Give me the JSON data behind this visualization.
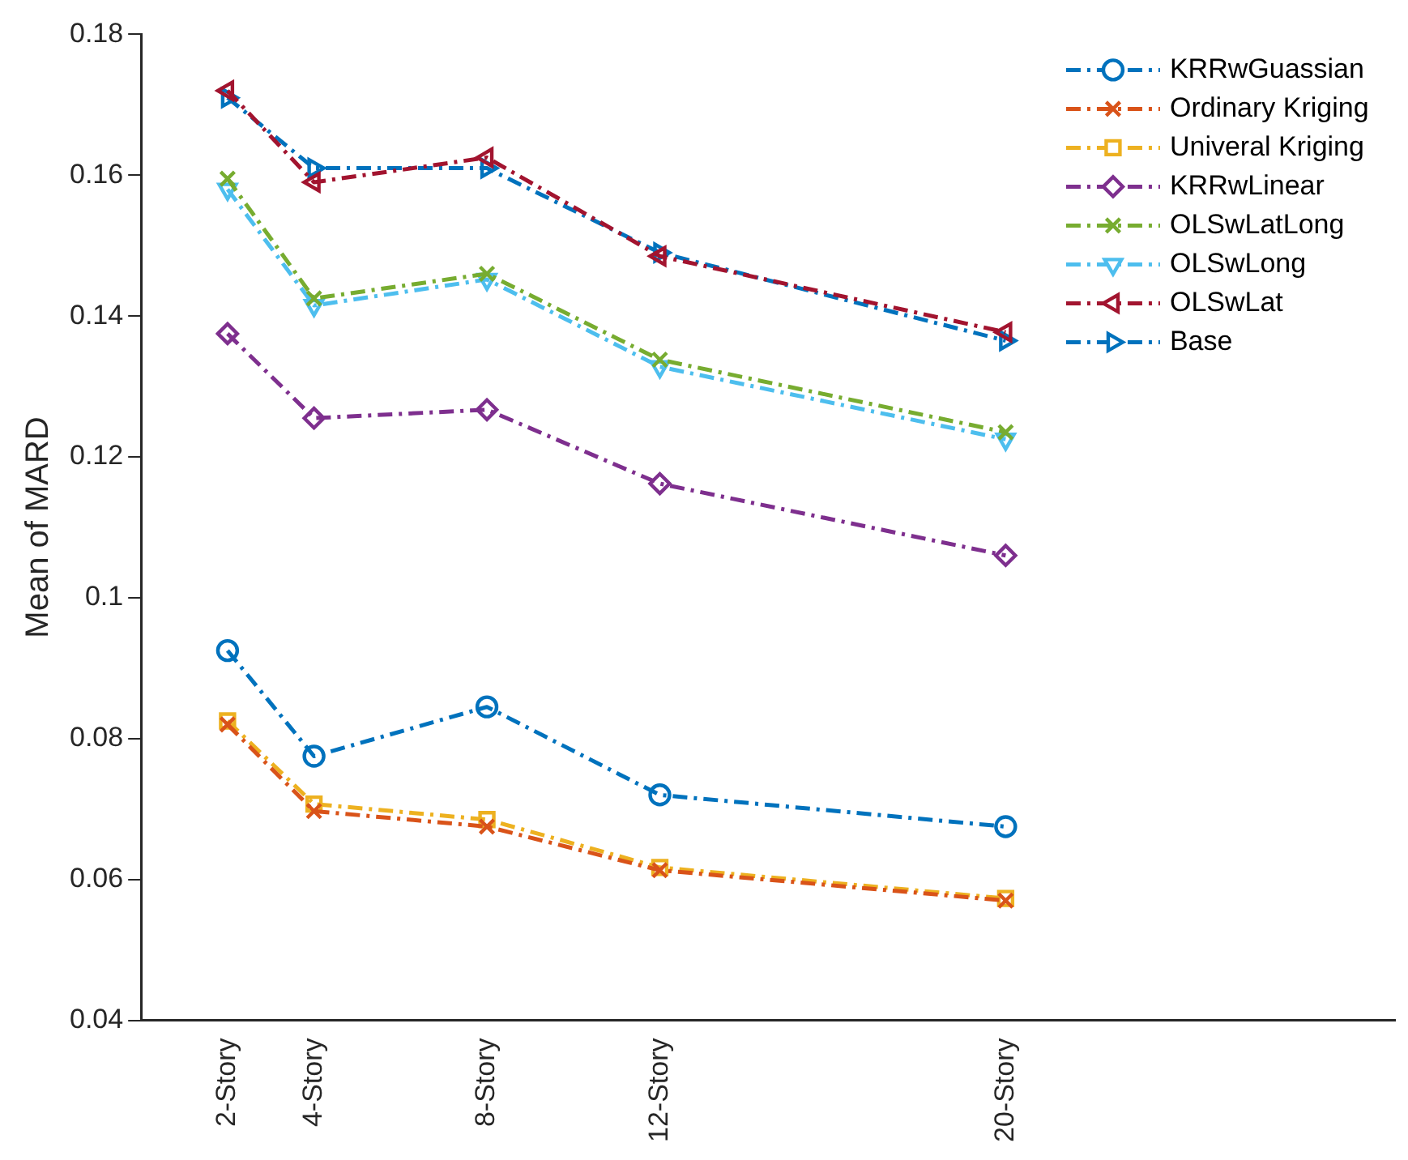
{
  "chart_data": {
    "type": "line",
    "ylabel": "Mean of MARD",
    "x": [
      2,
      4,
      8,
      12,
      20
    ],
    "xlim": [
      0,
      29
    ],
    "xticks": [
      {
        "value": 2,
        "label": "2-Story"
      },
      {
        "value": 4,
        "label": "4-Story"
      },
      {
        "value": 8,
        "label": "8-Story"
      },
      {
        "value": 12,
        "label": "12-Story"
      },
      {
        "value": 20,
        "label": "20-Story"
      }
    ],
    "ylim": [
      0.04,
      0.18
    ],
    "yticks": [
      0.04,
      0.06,
      0.08,
      0.1,
      0.12,
      0.14,
      0.16,
      0.18
    ],
    "grid": false,
    "legend": "top right",
    "line_style": "dashed",
    "series": [
      {
        "name": "KRRwGuassian",
        "color": "#0072bd",
        "marker": "circle",
        "values": [
          0.0925,
          0.0775,
          0.0845,
          0.072,
          0.0675
        ]
      },
      {
        "name": "Ordinary Kriging",
        "color": "#d95319",
        "marker": "cross",
        "values": [
          0.082,
          0.0697,
          0.0675,
          0.0613,
          0.057
        ]
      },
      {
        "name": "Univeral Kriging",
        "color": "#edb120",
        "marker": "square",
        "values": [
          0.0825,
          0.0707,
          0.0685,
          0.0617,
          0.0573
        ]
      },
      {
        "name": "KRRwLinear",
        "color": "#7e2f8e",
        "marker": "diamond",
        "values": [
          0.1375,
          0.1255,
          0.1267,
          0.1162,
          0.106
        ]
      },
      {
        "name": "OLSwLatLong",
        "color": "#77ac30",
        "marker": "cross",
        "values": [
          0.1595,
          0.1425,
          0.146,
          0.1338,
          0.1235
        ]
      },
      {
        "name": "OLSwLong",
        "color": "#4dbeee",
        "marker": "triangle-down",
        "values": [
          0.158,
          0.1415,
          0.1452,
          0.1328,
          0.1225
        ]
      },
      {
        "name": "OLSwLat",
        "color": "#a2142f",
        "marker": "triangle-left",
        "values": [
          0.172,
          0.159,
          0.1625,
          0.1485,
          0.1377
        ]
      },
      {
        "name": "Base",
        "color": "#0072bd",
        "marker": "triangle-right",
        "values": [
          0.171,
          0.161,
          0.161,
          0.149,
          0.1365
        ]
      }
    ]
  }
}
